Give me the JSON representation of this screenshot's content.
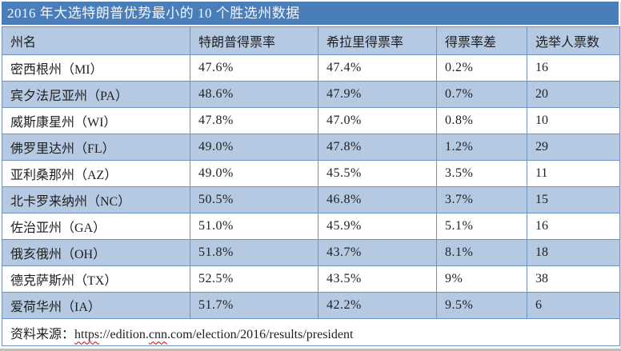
{
  "chart_data": {
    "type": "table",
    "title": "2016 年大选特朗普优势最小的 10 个胜选州数据",
    "columns": [
      "州名",
      "特朗普得票率",
      "希拉里得票率",
      "得票率差",
      "选举人票数"
    ],
    "rows": [
      [
        "密西根州（MI）",
        "47.6%",
        "47.4%",
        "0.2%",
        "16"
      ],
      [
        "宾夕法尼亚州（PA）",
        "48.6%",
        "47.9%",
        "0.7%",
        "20"
      ],
      [
        "威斯康星州（WI）",
        "47.8%",
        "47.0%",
        "0.8%",
        "10"
      ],
      [
        "佛罗里达州（FL）",
        "49.0%",
        "47.8%",
        "1.2%",
        "29"
      ],
      [
        "亚利桑那州（AZ）",
        "49.0%",
        "45.5%",
        "3.5%",
        "11"
      ],
      [
        "北卡罗来纳州（NC）",
        "50.5%",
        "46.8%",
        "3.7%",
        "15"
      ],
      [
        "佐治亚州（GA）",
        "51.0%",
        "45.9%",
        "5.1%",
        "16"
      ],
      [
        "俄亥俄州（OH）",
        "51.8%",
        "43.7%",
        "8.1%",
        "18"
      ],
      [
        "德克萨斯州（TX）",
        "52.5%",
        "43.5%",
        "9%",
        "38"
      ],
      [
        "爱荷华州（IA）",
        "51.7%",
        "42.2%",
        "9.5%",
        "6"
      ]
    ],
    "layout": {
      "banding": "alternate rows light blue starting from second data row",
      "grid": true
    }
  },
  "source": {
    "label": "资料来源：",
    "url": "https://edition.cnn.com/election/2016/results/president",
    "url_parts": [
      {
        "text": "https",
        "spellcheck": true
      },
      {
        "text": "://edition.",
        "spellcheck": false
      },
      {
        "text": "cnn",
        "spellcheck": true
      },
      {
        "text": ".com/election/2016/results/president",
        "spellcheck": false
      }
    ]
  },
  "colors": {
    "title_bar_bg": "#4a7ebb",
    "title_text": "#f2f6fb",
    "band_row_bg": "#b5c9e2",
    "white_row_bg": "#ffffff",
    "border": "#6f94bf",
    "text": "#1f1f1f",
    "spellcheck_underline": "#cc0000"
  }
}
